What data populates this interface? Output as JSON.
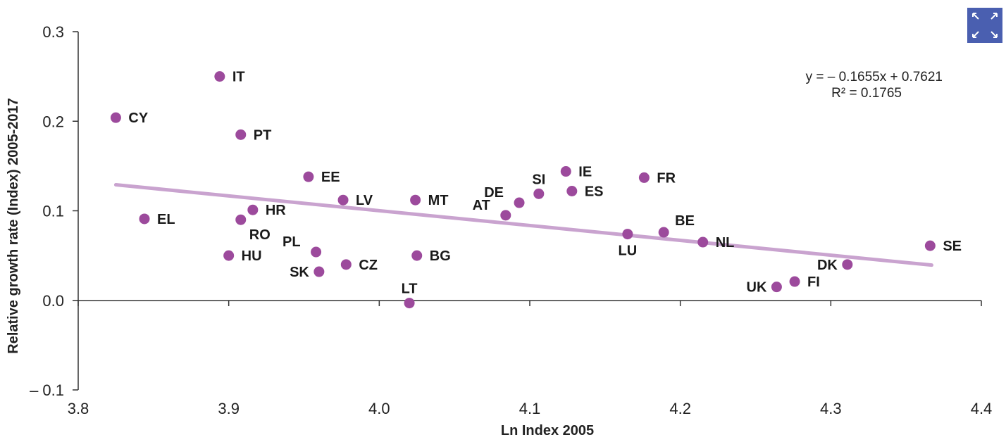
{
  "ui": {
    "expand_icon_color": "#4a5fb0"
  },
  "chart_data": {
    "type": "scatter",
    "xlabel": "Ln Index 2005",
    "ylabel": "Relative growth rate (Index) 2005-2017",
    "xlim": [
      3.8,
      4.4
    ],
    "ylim": [
      -0.1,
      0.3
    ],
    "x_ticks": [
      "3.8",
      "3.9",
      "4.0",
      "4.1",
      "4.2",
      "4.3",
      "4.4"
    ],
    "y_ticks": [
      "0.3",
      "0.2",
      "0.1",
      "0.0",
      "– 0.1"
    ],
    "point_color": "#9c4a9c",
    "trendline_color": "#c9a3cf",
    "trendline": {
      "slope": -0.1655,
      "intercept": 0.7621,
      "x_start": 3.825,
      "x_end": 4.367
    },
    "equation": "y = – 0.1655x + 0.7621",
    "r_squared": "R² = 0.1765",
    "points": [
      {
        "label": "CY",
        "x": 3.825,
        "y": 0.204,
        "pos": "right"
      },
      {
        "label": "EL",
        "x": 3.844,
        "y": 0.091,
        "pos": "right"
      },
      {
        "label": "IT",
        "x": 3.894,
        "y": 0.25,
        "pos": "right"
      },
      {
        "label": "PT",
        "x": 3.908,
        "y": 0.185,
        "pos": "right"
      },
      {
        "label": "HU",
        "x": 3.9,
        "y": 0.05,
        "pos": "right"
      },
      {
        "label": "RO",
        "x": 3.908,
        "y": 0.09,
        "pos": "below-right"
      },
      {
        "label": "HR",
        "x": 3.916,
        "y": 0.101,
        "pos": "right"
      },
      {
        "label": "EE",
        "x": 3.953,
        "y": 0.138,
        "pos": "right"
      },
      {
        "label": "PL",
        "x": 3.958,
        "y": 0.054,
        "pos": "above-left"
      },
      {
        "label": "SK",
        "x": 3.96,
        "y": 0.032,
        "pos": "left"
      },
      {
        "label": "LV",
        "x": 3.976,
        "y": 0.112,
        "pos": "right"
      },
      {
        "label": "CZ",
        "x": 3.978,
        "y": 0.04,
        "pos": "right"
      },
      {
        "label": "LT",
        "x": 4.02,
        "y": -0.003,
        "pos": "above"
      },
      {
        "label": "MT",
        "x": 4.024,
        "y": 0.112,
        "pos": "right"
      },
      {
        "label": "BG",
        "x": 4.025,
        "y": 0.05,
        "pos": "right"
      },
      {
        "label": "AT",
        "x": 4.084,
        "y": 0.095,
        "pos": "above-left"
      },
      {
        "label": "DE",
        "x": 4.093,
        "y": 0.109,
        "pos": "above-left"
      },
      {
        "label": "SI",
        "x": 4.106,
        "y": 0.119,
        "pos": "above"
      },
      {
        "label": "IE",
        "x": 4.124,
        "y": 0.144,
        "pos": "right"
      },
      {
        "label": "ES",
        "x": 4.128,
        "y": 0.122,
        "pos": "right"
      },
      {
        "label": "LU",
        "x": 4.165,
        "y": 0.074,
        "pos": "below"
      },
      {
        "label": "FR",
        "x": 4.176,
        "y": 0.137,
        "pos": "right"
      },
      {
        "label": "BE",
        "x": 4.189,
        "y": 0.076,
        "pos": "above-right"
      },
      {
        "label": "NL",
        "x": 4.215,
        "y": 0.065,
        "pos": "right"
      },
      {
        "label": "UK",
        "x": 4.264,
        "y": 0.015,
        "pos": "left"
      },
      {
        "label": "FI",
        "x": 4.276,
        "y": 0.021,
        "pos": "right"
      },
      {
        "label": "DK",
        "x": 4.311,
        "y": 0.04,
        "pos": "left"
      },
      {
        "label": "SE",
        "x": 4.366,
        "y": 0.061,
        "pos": "right"
      }
    ]
  }
}
